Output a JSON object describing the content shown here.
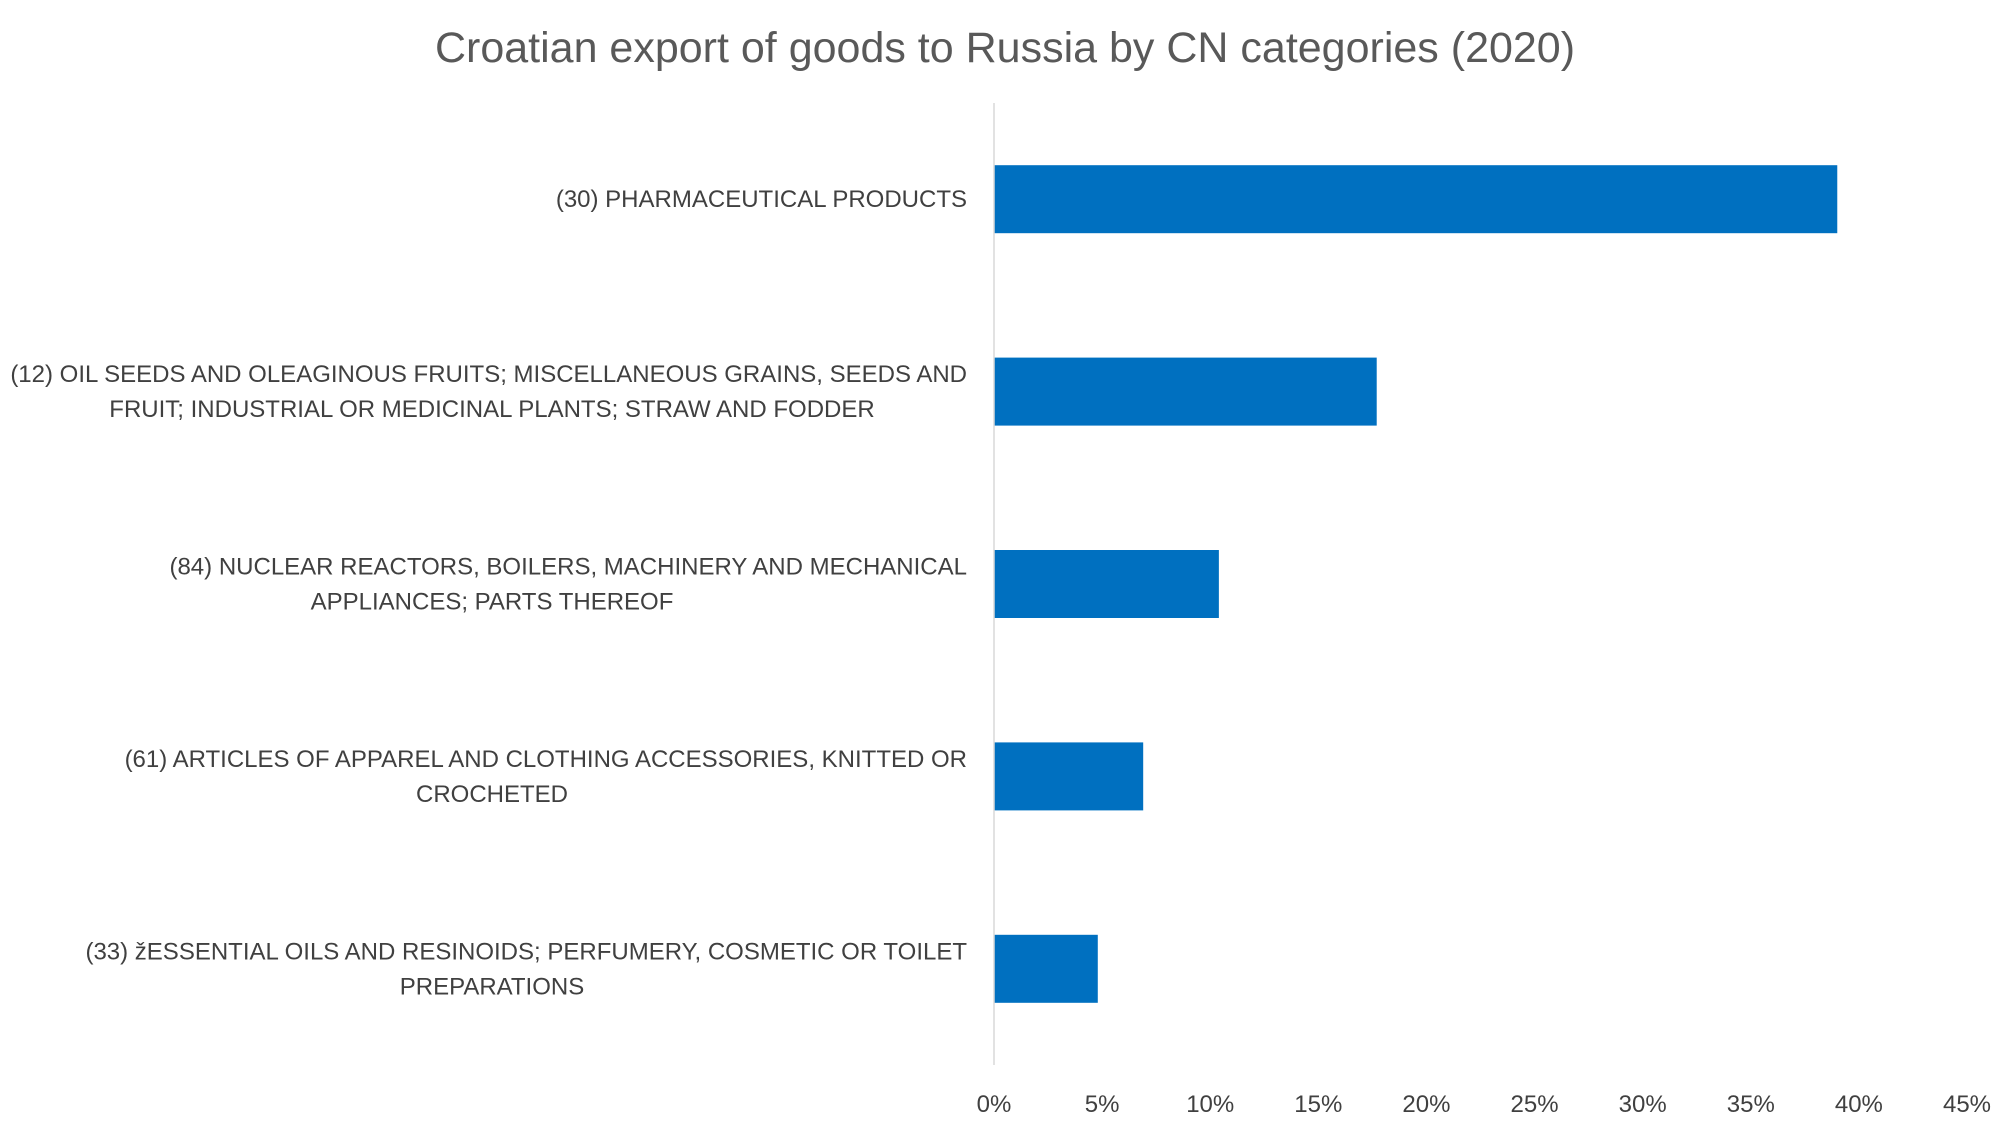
{
  "colors": {
    "bar": "#0070c0",
    "axis_line": "#d9d9d9",
    "title_text": "#595959",
    "label_text": "#404040",
    "background": "#ffffff"
  },
  "chart_data": {
    "type": "bar",
    "orientation": "horizontal",
    "title": "Croatian export of goods to Russia by CN categories (2020)",
    "xlabel": "",
    "ylabel": "",
    "categories": [
      "(30) PHARMACEUTICAL PRODUCTS",
      "(12) OIL SEEDS AND OLEAGINOUS FRUITS; MISCELLANEOUS GRAINS, SEEDS AND FRUIT; INDUSTRIAL OR MEDICINAL PLANTS; STRAW AND FODDER",
      "(84) NUCLEAR REACTORS, BOILERS, MACHINERY AND MECHANICAL APPLIANCES; PARTS THEREOF",
      "(61) ARTICLES OF APPAREL AND CLOTHING ACCESSORIES, KNITTED OR CROCHETED",
      "(33) žESSENTIAL OILS AND RESINOIDS; PERFUMERY, COSMETIC OR TOILET PREPARATIONS"
    ],
    "category_label_lines": [
      [
        "(30) PHARMACEUTICAL PRODUCTS"
      ],
      [
        "(12) OIL SEEDS AND OLEAGINOUS FRUITS; MISCELLANEOUS GRAINS, SEEDS AND",
        "FRUIT; INDUSTRIAL OR MEDICINAL PLANTS; STRAW AND FODDER"
      ],
      [
        "(84) NUCLEAR REACTORS, BOILERS, MACHINERY AND MECHANICAL",
        "APPLIANCES; PARTS THEREOF"
      ],
      [
        "(61) ARTICLES OF APPAREL AND CLOTHING ACCESSORIES, KNITTED OR",
        "CROCHETED"
      ],
      [
        "(33) žESSENTIAL OILS AND RESINOIDS; PERFUMERY, COSMETIC OR TOILET",
        "PREPARATIONS"
      ]
    ],
    "values": [
      39.0,
      17.7,
      10.4,
      6.9,
      4.8
    ],
    "xlim": [
      0,
      45
    ],
    "xticks": [
      0,
      5,
      10,
      15,
      20,
      25,
      30,
      35,
      40,
      45
    ],
    "xtick_labels": [
      "0%",
      "5%",
      "10%",
      "15%",
      "20%",
      "25%",
      "30%",
      "35%",
      "40%",
      "45%"
    ],
    "grid": false,
    "legend": "none"
  }
}
